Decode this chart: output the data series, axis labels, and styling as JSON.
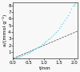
{
  "title": "",
  "xlabel": "t/nm",
  "ylabel": "a/(mmol g⁻¹)",
  "xlim": [
    0,
    2.1
  ],
  "ylim": [
    0,
    8.5
  ],
  "xticks": [
    0,
    0.5,
    1,
    1.5,
    2
  ],
  "yticks": [
    1,
    2,
    3,
    4,
    5,
    6,
    7,
    8
  ],
  "dot_color": "#66ddee",
  "line_color": "#444444",
  "curve_t": [
    0.05,
    0.1,
    0.15,
    0.2,
    0.25,
    0.3,
    0.35,
    0.4,
    0.45,
    0.5,
    0.55,
    0.6,
    0.65,
    0.7,
    0.75,
    0.8,
    0.85,
    0.9,
    0.95,
    1.0,
    1.05,
    1.1,
    1.15,
    1.2,
    1.25,
    1.3,
    1.35,
    1.4,
    1.45,
    1.5,
    1.55,
    1.6,
    1.65,
    1.7,
    1.75,
    1.8,
    1.85,
    1.9,
    1.95,
    2.0,
    2.02,
    2.04,
    2.06
  ],
  "curve_a": [
    0.07,
    0.14,
    0.22,
    0.3,
    0.39,
    0.48,
    0.58,
    0.68,
    0.79,
    0.9,
    1.02,
    1.14,
    1.27,
    1.4,
    1.54,
    1.68,
    1.83,
    1.99,
    2.15,
    2.32,
    2.5,
    2.68,
    2.88,
    3.08,
    3.3,
    3.52,
    3.76,
    4.01,
    4.27,
    4.55,
    4.84,
    5.15,
    5.48,
    5.83,
    6.2,
    6.59,
    7.01,
    7.46,
    7.95,
    8.0,
    8.2,
    8.42,
    8.65
  ],
  "line_x": [
    0,
    2.1
  ],
  "line_y": [
    0,
    4.1
  ],
  "bg_color": "#f8f8f8",
  "tick_fontsize": 4,
  "label_fontsize": 4.5,
  "dot_size": 1.2,
  "line_width": 0.5
}
